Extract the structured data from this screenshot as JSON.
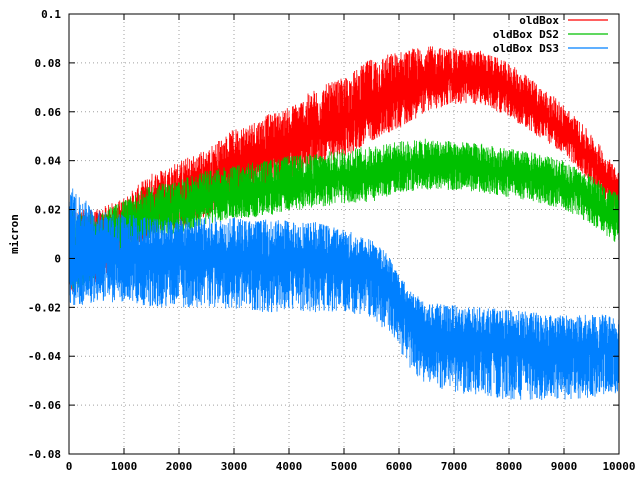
{
  "chart_data": {
    "type": "line",
    "title": "",
    "xlabel": "",
    "ylabel": "micron",
    "xlim": [
      0,
      10000
    ],
    "ylim": [
      -0.08,
      0.1
    ],
    "x_ticks": [
      0,
      1000,
      2000,
      3000,
      4000,
      5000,
      6000,
      7000,
      8000,
      9000,
      10000
    ],
    "x_tick_labels": [
      "0",
      "1000",
      "2000",
      "3000",
      "4000",
      "5000",
      "6000",
      "7000",
      "8000",
      "9000",
      "10000"
    ],
    "y_ticks": [
      -0.08,
      -0.06,
      -0.04,
      -0.02,
      0,
      0.02,
      0.04,
      0.06,
      0.08,
      0.1
    ],
    "y_tick_labels": [
      "-0.08",
      "-0.06",
      "-0.04",
      "-0.02",
      "0",
      "0.02",
      "0.04",
      "0.06",
      "0.08",
      "0.1"
    ],
    "grid": true,
    "legend_position": "top-right",
    "series": [
      {
        "name": "oldBox",
        "color": "#ff0000",
        "x": [
          0,
          500,
          1000,
          1500,
          2000,
          2500,
          3000,
          3500,
          4000,
          4500,
          5000,
          5500,
          6000,
          6500,
          7000,
          7500,
          8000,
          8500,
          9000,
          9500,
          10000
        ],
        "y": [
          0.0,
          0.005,
          0.012,
          0.022,
          0.025,
          0.03,
          0.038,
          0.042,
          0.046,
          0.052,
          0.056,
          0.064,
          0.068,
          0.073,
          0.074,
          0.074,
          0.068,
          0.06,
          0.052,
          0.04,
          0.025
        ],
        "upper": [
          0.02,
          0.02,
          0.025,
          0.035,
          0.04,
          0.045,
          0.053,
          0.058,
          0.062,
          0.07,
          0.074,
          0.082,
          0.085,
          0.087,
          0.086,
          0.085,
          0.08,
          0.072,
          0.063,
          0.051,
          0.036
        ],
        "lower": [
          -0.015,
          -0.01,
          0.0,
          0.01,
          0.012,
          0.017,
          0.024,
          0.028,
          0.032,
          0.037,
          0.041,
          0.048,
          0.053,
          0.06,
          0.063,
          0.063,
          0.058,
          0.05,
          0.043,
          0.03,
          0.017
        ]
      },
      {
        "name": "oldBox DS2",
        "color": "#00c000",
        "x": [
          0,
          500,
          1000,
          1500,
          2000,
          2500,
          3000,
          3500,
          4000,
          4500,
          5000,
          5500,
          6000,
          6500,
          7000,
          7500,
          8000,
          8500,
          9000,
          9500,
          10000
        ],
        "y": [
          0.0,
          0.005,
          0.012,
          0.018,
          0.021,
          0.024,
          0.026,
          0.028,
          0.03,
          0.032,
          0.033,
          0.034,
          0.037,
          0.038,
          0.038,
          0.037,
          0.035,
          0.033,
          0.03,
          0.024,
          0.016
        ],
        "upper": [
          0.02,
          0.018,
          0.024,
          0.03,
          0.032,
          0.036,
          0.038,
          0.04,
          0.042,
          0.043,
          0.045,
          0.046,
          0.048,
          0.049,
          0.048,
          0.047,
          0.045,
          0.043,
          0.04,
          0.034,
          0.026
        ],
        "lower": [
          -0.015,
          -0.008,
          0.0,
          0.008,
          0.01,
          0.014,
          0.016,
          0.017,
          0.019,
          0.021,
          0.022,
          0.023,
          0.027,
          0.028,
          0.028,
          0.027,
          0.025,
          0.023,
          0.02,
          0.014,
          0.005
        ]
      },
      {
        "name": "oldBox DS3",
        "color": "#0080ff",
        "x": [
          0,
          500,
          1000,
          1500,
          2000,
          2500,
          3000,
          3500,
          4000,
          4500,
          5000,
          5500,
          5800,
          6200,
          6500,
          7000,
          7500,
          8000,
          8500,
          9000,
          9500,
          10000
        ],
        "y": [
          0.0,
          0.0,
          0.0,
          0.0,
          0.0,
          0.0,
          0.0,
          0.0,
          0.0,
          -0.001,
          -0.002,
          -0.005,
          -0.01,
          -0.025,
          -0.03,
          -0.032,
          -0.033,
          -0.035,
          -0.036,
          -0.037,
          -0.037,
          -0.037
        ],
        "upper": [
          0.03,
          0.02,
          0.018,
          0.018,
          0.017,
          0.017,
          0.017,
          0.016,
          0.016,
          0.015,
          0.012,
          0.008,
          0.002,
          -0.013,
          -0.018,
          -0.019,
          -0.02,
          -0.021,
          -0.022,
          -0.023,
          -0.023,
          -0.023
        ],
        "lower": [
          -0.02,
          -0.018,
          -0.018,
          -0.02,
          -0.02,
          -0.02,
          -0.021,
          -0.022,
          -0.022,
          -0.022,
          -0.022,
          -0.025,
          -0.03,
          -0.045,
          -0.052,
          -0.055,
          -0.056,
          -0.058,
          -0.058,
          -0.058,
          -0.057,
          -0.055
        ]
      }
    ]
  }
}
